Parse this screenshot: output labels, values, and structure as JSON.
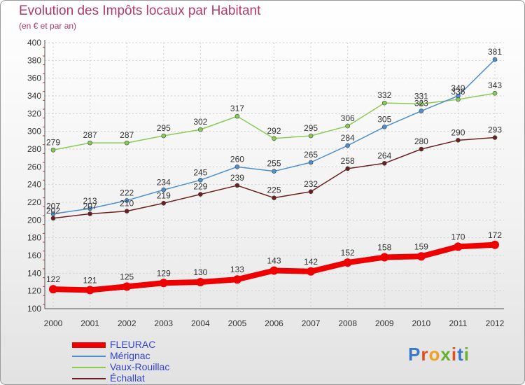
{
  "header": {
    "title": "Evolution des Impôts locaux par Habitant",
    "subtitle": "(en € et par an)"
  },
  "brand": {
    "logo_text": "Proxiti"
  },
  "chart_data": {
    "type": "line",
    "title": "Evolution des Impôts locaux par Habitant",
    "subtitle": "(en € et par an)",
    "xlabel": "",
    "ylabel": "",
    "ylim": [
      100,
      400
    ],
    "y_ticks": [
      100,
      120,
      140,
      160,
      180,
      200,
      220,
      240,
      260,
      280,
      300,
      320,
      340,
      360,
      380,
      400
    ],
    "grid": true,
    "legend_position": "bottom-left",
    "categories": [
      "2000",
      "2001",
      "2002",
      "2003",
      "2004",
      "2005",
      "2006",
      "2007",
      "2008",
      "2009",
      "2010",
      "2011",
      "2012"
    ],
    "series": [
      {
        "name": "FLEURAC",
        "color": "#ee0000",
        "values": [
          122,
          121,
          125,
          129,
          130,
          133,
          143,
          142,
          152,
          158,
          159,
          170,
          172
        ]
      },
      {
        "name": "Mérignac",
        "color": "#4d8fcc",
        "values": [
          207,
          213,
          222,
          234,
          245,
          260,
          255,
          265,
          284,
          305,
          323,
          340,
          381
        ]
      },
      {
        "name": "Vaux-Rouillac",
        "color": "#88cc55",
        "values": [
          279,
          287,
          287,
          295,
          302,
          317,
          292,
          295,
          306,
          332,
          331,
          336,
          343
        ]
      },
      {
        "name": "Échallat",
        "color": "#6b2020",
        "values": [
          202,
          207,
          210,
          219,
          229,
          239,
          225,
          232,
          258,
          264,
          280,
          290,
          293
        ]
      }
    ]
  }
}
